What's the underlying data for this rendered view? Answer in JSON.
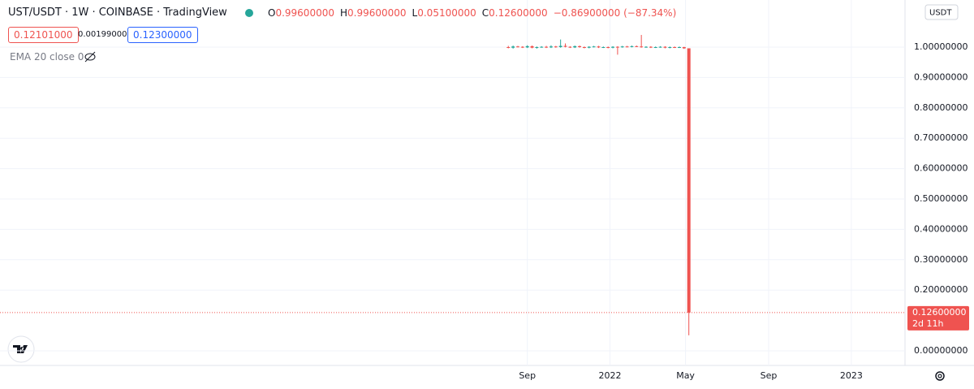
{
  "chart_data": {
    "type": "candlestick",
    "symbol": "UST/USDT · 1W · COINBASE · TradingView",
    "ohlc": [
      {
        "label": "O",
        "value": "0.99600000"
      },
      {
        "label": "H",
        "value": "0.99600000"
      },
      {
        "label": "L",
        "value": "0.05100000"
      },
      {
        "label": "C",
        "value": "0.12600000"
      }
    ],
    "change": "−0.86900000 (−87.34%)",
    "sell": "0.12101000",
    "spread": "0.00199000",
    "buy": "0.12300000",
    "indicator": "EMA 20 close 0",
    "currency": "USDT",
    "last_price_label": "0.12600000",
    "countdown": "2d 11h",
    "up_color": "#26a69a",
    "down_color": "#ef5350",
    "x": [
      -4,
      -3,
      -2,
      -1,
      0,
      1,
      2,
      3,
      4,
      5,
      6,
      7,
      8,
      9,
      10,
      11,
      12,
      13,
      14,
      15,
      16,
      17,
      18,
      19,
      20,
      21,
      22,
      23,
      24,
      25,
      26,
      27,
      28,
      29,
      30,
      31,
      32,
      33,
      34
    ],
    "open": [
      1.0,
      0.998,
      1.002,
      1.001,
      0.999,
      1.003,
      0.998,
      1.0,
      1.001,
      0.999,
      1.002,
      1.0,
      1.004,
      1.001,
      0.999,
      1.003,
      1.0,
      0.998,
      1.001,
      1.002,
      0.999,
      1.0,
      0.998,
      1.001,
      1.0,
      1.002,
      1.001,
      1.003,
      1.002,
      1.0,
      1.001,
      0.999,
      1.0,
      1.001,
      0.998,
      1.0,
      0.999,
      1.0,
      0.996
    ],
    "high": [
      1.004,
      1.005,
      1.004,
      1.003,
      1.006,
      1.005,
      1.002,
      1.003,
      1.004,
      1.006,
      1.004,
      1.025,
      1.012,
      1.003,
      1.005,
      1.005,
      1.002,
      1.003,
      1.004,
      1.004,
      1.002,
      1.002,
      1.003,
      1.003,
      1.004,
      1.004,
      1.005,
      1.005,
      1.04,
      1.003,
      1.003,
      1.002,
      1.003,
      1.003,
      1.002,
      1.002,
      1.002,
      1.001,
      0.996
    ],
    "low": [
      0.996,
      0.995,
      0.999,
      0.997,
      0.997,
      0.996,
      0.995,
      0.998,
      0.997,
      0.997,
      0.998,
      0.998,
      0.999,
      0.997,
      0.997,
      0.998,
      0.996,
      0.996,
      0.999,
      0.997,
      0.997,
      0.996,
      0.996,
      0.975,
      0.998,
      0.999,
      0.999,
      1.0,
      0.998,
      0.998,
      0.997,
      0.997,
      0.998,
      0.996,
      0.996,
      0.997,
      0.997,
      0.994,
      0.051
    ],
    "close": [
      0.998,
      1.002,
      1.001,
      0.999,
      1.003,
      0.998,
      1.0,
      1.001,
      0.999,
      1.002,
      1.0,
      1.004,
      1.001,
      0.999,
      1.003,
      1.0,
      0.998,
      1.001,
      1.002,
      0.999,
      1.0,
      0.998,
      1.001,
      1.0,
      1.002,
      1.001,
      1.003,
      1.002,
      1.0,
      1.001,
      0.999,
      1.0,
      1.001,
      0.998,
      1.0,
      0.999,
      1.0,
      0.996,
      0.126
    ],
    "xlim": [
      -111,
      79.5
    ],
    "xticks": [
      {
        "value": 0,
        "label": "Sep"
      },
      {
        "value": 17.4,
        "label": "2022"
      },
      {
        "value": 33.3,
        "label": "May"
      },
      {
        "value": 50.8,
        "label": "Sep"
      },
      {
        "value": 68.2,
        "label": "2023"
      }
    ],
    "ylim": [
      0,
      1.1497
    ],
    "yticks": [
      {
        "value": 0,
        "label": "0.00000000"
      },
      {
        "value": 0.2,
        "label": "0.20000000"
      },
      {
        "value": 0.3,
        "label": "0.30000000"
      },
      {
        "value": 0.4,
        "label": "0.40000000"
      },
      {
        "value": 0.5,
        "label": "0.50000000"
      },
      {
        "value": 0.6,
        "label": "0.60000000"
      },
      {
        "value": 0.7,
        "label": "0.70000000"
      },
      {
        "value": 0.8,
        "label": "0.80000000"
      },
      {
        "value": 0.9,
        "label": "0.90000000"
      },
      {
        "value": 1.0,
        "label": "1.00000000"
      }
    ],
    "grid": true
  }
}
